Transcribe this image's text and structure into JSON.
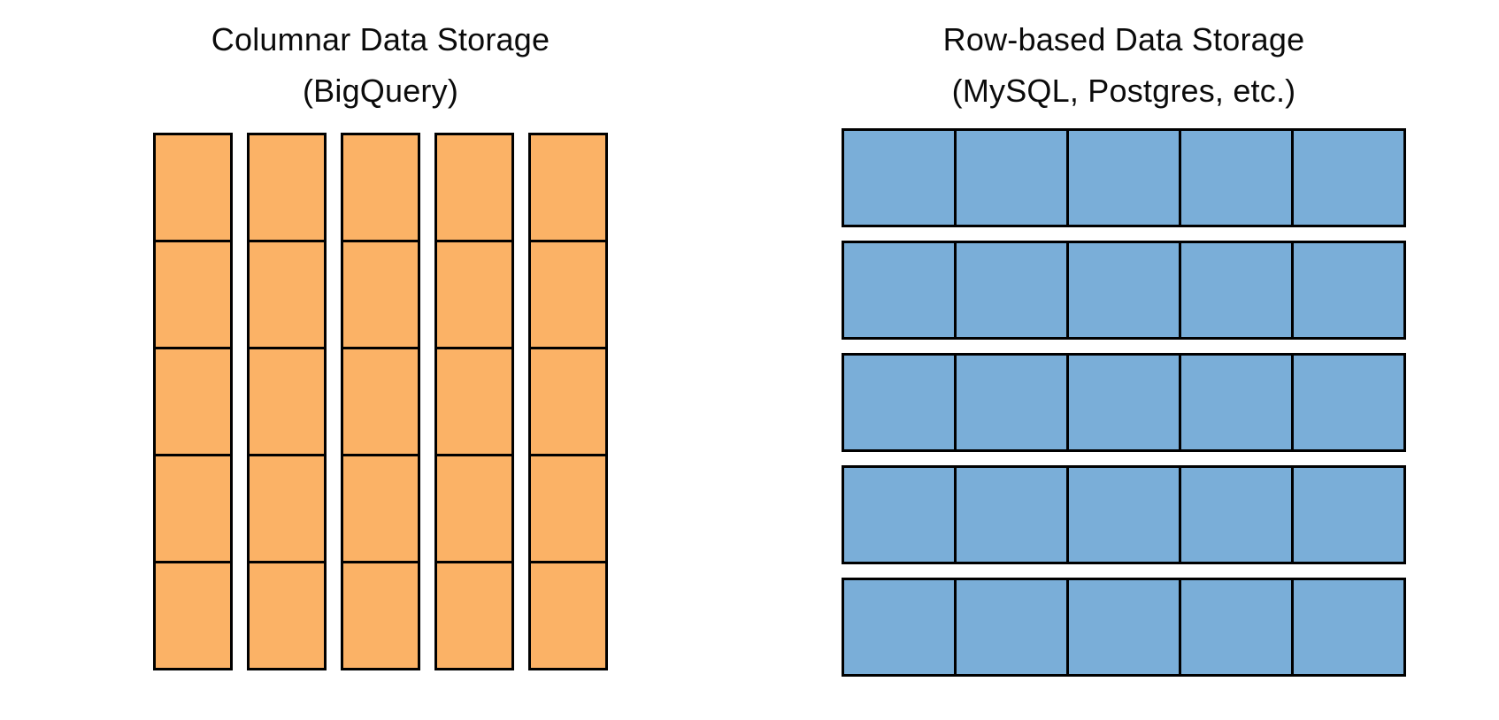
{
  "page": {
    "background_color": "#ffffff",
    "text_color": "#0b0b0b",
    "border_color": "#000000"
  },
  "left_panel": {
    "title_line1": "Columnar Data Storage",
    "title_line2": "(BigQuery)",
    "cell_color": "#fbb266",
    "orientation": "columns",
    "columns": 5,
    "cells_per_column": 5
  },
  "right_panel": {
    "title_line1": "Row-based Data Storage",
    "title_line2": "(MySQL, Postgres, etc.)",
    "cell_color": "#7aaed8",
    "orientation": "rows",
    "rows": 5,
    "cells_per_row": 5
  }
}
